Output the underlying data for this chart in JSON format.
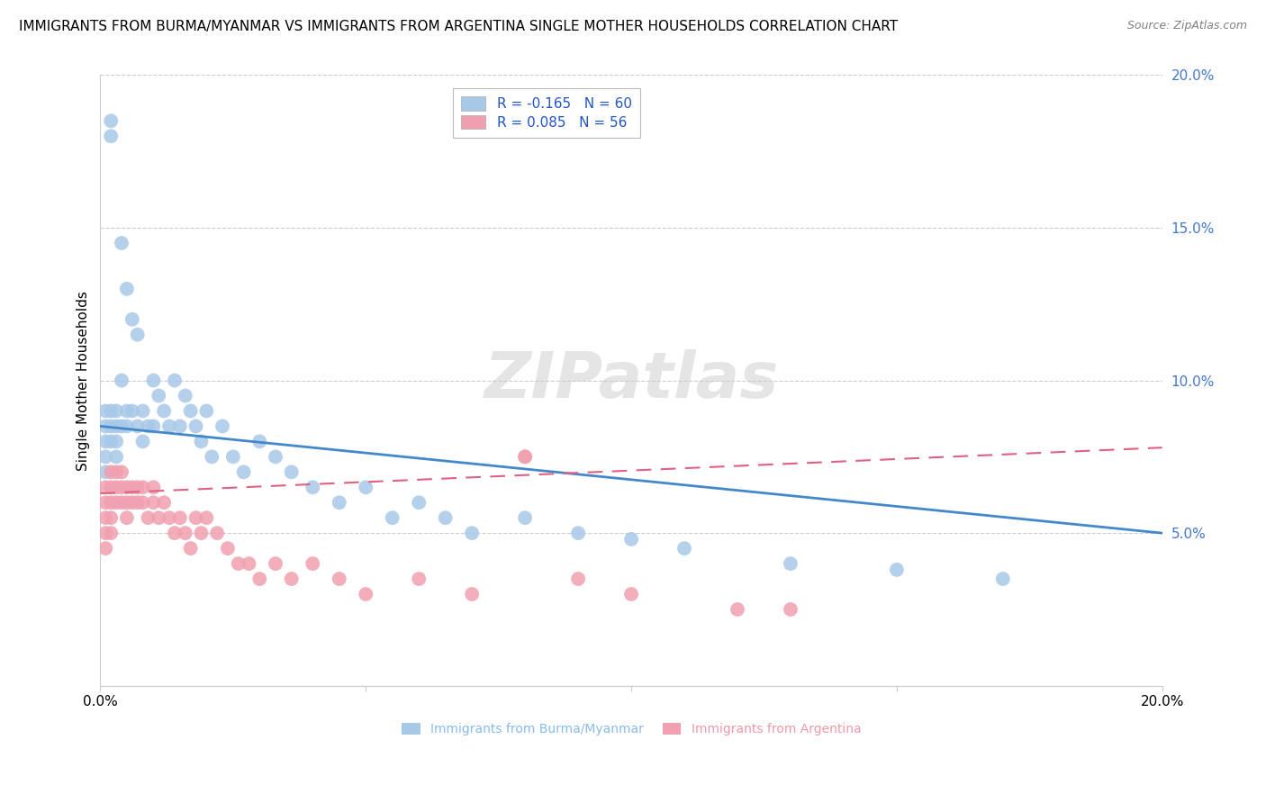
{
  "title": "IMMIGRANTS FROM BURMA/MYANMAR VS IMMIGRANTS FROM ARGENTINA SINGLE MOTHER HOUSEHOLDS CORRELATION CHART",
  "source": "Source: ZipAtlas.com",
  "ylabel": "Single Mother Households",
  "y_ticks": [
    0.0,
    0.05,
    0.1,
    0.15,
    0.2
  ],
  "y_tick_labels": [
    "",
    "5.0%",
    "10.0%",
    "15.0%",
    "20.0%"
  ],
  "x_ticks": [
    0.0,
    0.2
  ],
  "x_tick_labels": [
    "0.0%",
    "20.0%"
  ],
  "xmin": 0.0,
  "xmax": 0.2,
  "ymin": 0.0,
  "ymax": 0.2,
  "watermark": "ZIPatlas",
  "series": [
    {
      "label": "Immigrants from Burma/Myanmar",
      "R": -0.165,
      "N": 60,
      "color": "#a8c8e8",
      "line_color": "#4488cc",
      "line_style": "solid",
      "x": [
        0.001,
        0.001,
        0.001,
        0.001,
        0.001,
        0.002,
        0.002,
        0.002,
        0.002,
        0.002,
        0.003,
        0.003,
        0.003,
        0.003,
        0.004,
        0.004,
        0.004,
        0.005,
        0.005,
        0.005,
        0.006,
        0.006,
        0.007,
        0.007,
        0.008,
        0.008,
        0.009,
        0.01,
        0.01,
        0.011,
        0.012,
        0.013,
        0.014,
        0.015,
        0.016,
        0.017,
        0.018,
        0.019,
        0.02,
        0.021,
        0.023,
        0.025,
        0.027,
        0.03,
        0.033,
        0.036,
        0.04,
        0.045,
        0.05,
        0.055,
        0.06,
        0.065,
        0.07,
        0.08,
        0.09,
        0.1,
        0.11,
        0.13,
        0.15,
        0.17
      ],
      "y": [
        0.09,
        0.085,
        0.08,
        0.075,
        0.07,
        0.185,
        0.18,
        0.09,
        0.085,
        0.08,
        0.09,
        0.085,
        0.08,
        0.075,
        0.145,
        0.1,
        0.085,
        0.13,
        0.09,
        0.085,
        0.12,
        0.09,
        0.115,
        0.085,
        0.09,
        0.08,
        0.085,
        0.1,
        0.085,
        0.095,
        0.09,
        0.085,
        0.1,
        0.085,
        0.095,
        0.09,
        0.085,
        0.08,
        0.09,
        0.075,
        0.085,
        0.075,
        0.07,
        0.08,
        0.075,
        0.07,
        0.065,
        0.06,
        0.065,
        0.055,
        0.06,
        0.055,
        0.05,
        0.055,
        0.05,
        0.048,
        0.045,
        0.04,
        0.038,
        0.035
      ]
    },
    {
      "label": "Immigrants from Argentina",
      "R": 0.085,
      "N": 56,
      "color": "#f0a0b0",
      "line_color": "#e06080",
      "line_style": "dashed",
      "x": [
        0.001,
        0.001,
        0.001,
        0.001,
        0.001,
        0.002,
        0.002,
        0.002,
        0.002,
        0.002,
        0.003,
        0.003,
        0.003,
        0.004,
        0.004,
        0.004,
        0.005,
        0.005,
        0.005,
        0.006,
        0.006,
        0.007,
        0.007,
        0.008,
        0.008,
        0.009,
        0.01,
        0.01,
        0.011,
        0.012,
        0.013,
        0.014,
        0.015,
        0.016,
        0.017,
        0.018,
        0.019,
        0.02,
        0.022,
        0.024,
        0.026,
        0.028,
        0.03,
        0.033,
        0.036,
        0.04,
        0.045,
        0.05,
        0.06,
        0.07,
        0.08,
        0.09,
        0.1,
        0.12,
        0.13,
        0.08
      ],
      "y": [
        0.065,
        0.06,
        0.055,
        0.05,
        0.045,
        0.07,
        0.065,
        0.06,
        0.055,
        0.05,
        0.07,
        0.065,
        0.06,
        0.07,
        0.065,
        0.06,
        0.065,
        0.06,
        0.055,
        0.065,
        0.06,
        0.065,
        0.06,
        0.065,
        0.06,
        0.055,
        0.065,
        0.06,
        0.055,
        0.06,
        0.055,
        0.05,
        0.055,
        0.05,
        0.045,
        0.055,
        0.05,
        0.055,
        0.05,
        0.045,
        0.04,
        0.04,
        0.035,
        0.04,
        0.035,
        0.04,
        0.035,
        0.03,
        0.035,
        0.03,
        0.075,
        0.035,
        0.03,
        0.025,
        0.025,
        0.075
      ]
    }
  ],
  "title_fontsize": 11,
  "source_fontsize": 9,
  "axis_label_fontsize": 11,
  "tick_fontsize": 11,
  "legend_fontsize": 11,
  "watermark_color": "#cccccc",
  "watermark_fontsize": 52,
  "background_color": "#ffffff",
  "grid_color": "#cccccc",
  "legend_R_color": "#cc0000",
  "legend_N_color": "#2255cc",
  "bottom_label_color_1": "#88bbee",
  "bottom_label_color_2": "#ee99aa"
}
